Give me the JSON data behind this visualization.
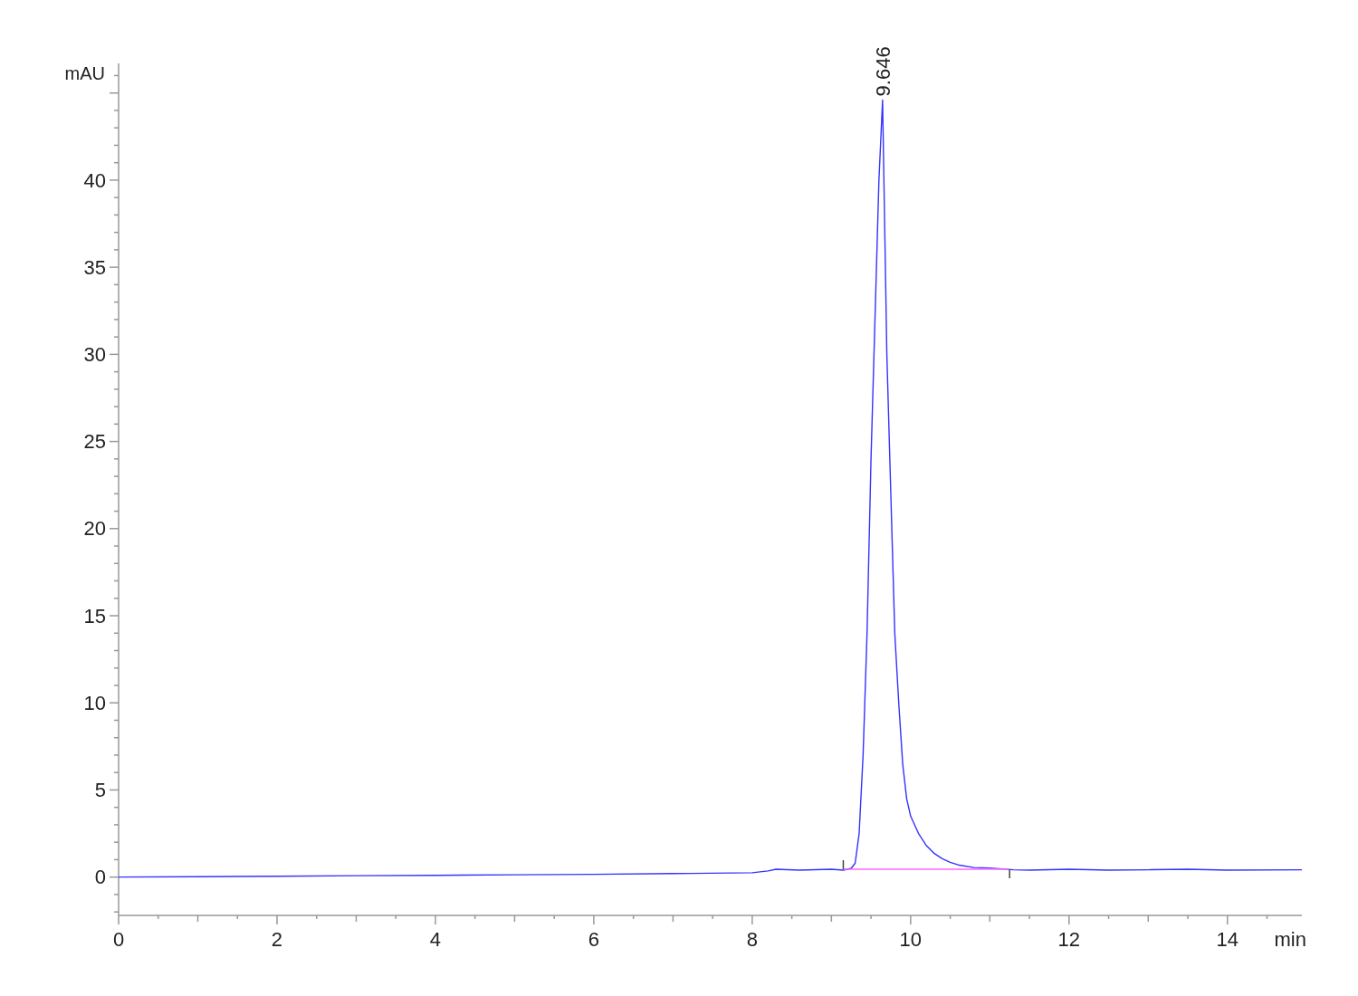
{
  "chart_data": {
    "type": "line",
    "xlabel": "min",
    "ylabel": "mAU",
    "xlim": [
      0,
      14.94
    ],
    "ylim": [
      -2.2,
      46.7
    ],
    "xticks": [
      0,
      {
        "value": 0.5,
        "label": null
      },
      {
        "value": 1,
        "label": null
      },
      {
        "value": 1.5,
        "label": null
      },
      2,
      {
        "value": 2.5,
        "label": null
      },
      {
        "value": 3,
        "label": null
      },
      {
        "value": 3.5,
        "label": null
      },
      4,
      {
        "value": 4.5,
        "label": null
      },
      {
        "value": 5,
        "label": null
      },
      {
        "value": 5.5,
        "label": null
      },
      6,
      {
        "value": 6.5,
        "label": null
      },
      {
        "value": 7,
        "label": null
      },
      {
        "value": 7.5,
        "label": null
      },
      8,
      {
        "value": 8.5,
        "label": null
      },
      {
        "value": 9,
        "label": null
      },
      {
        "value": 9.5,
        "label": null
      },
      10,
      {
        "value": 10.5,
        "label": null
      },
      {
        "value": 11,
        "label": null
      },
      {
        "value": 11.5,
        "label": null
      },
      12,
      {
        "value": 12.5,
        "label": null
      },
      {
        "value": 13,
        "label": null
      },
      {
        "value": 13.5,
        "label": null
      },
      14,
      {
        "value": 14.5,
        "label": null
      }
    ],
    "yticks": [
      {
        "value": -2,
        "label": null
      },
      {
        "value": -1,
        "label": null
      },
      0,
      {
        "value": 1,
        "label": null
      },
      {
        "value": 2,
        "label": null
      },
      {
        "value": 3,
        "label": null
      },
      {
        "value": 4,
        "label": null
      },
      5,
      {
        "value": 6,
        "label": null
      },
      {
        "value": 7,
        "label": null
      },
      {
        "value": 8,
        "label": null
      },
      {
        "value": 9,
        "label": null
      },
      10,
      {
        "value": 11,
        "label": null
      },
      {
        "value": 12,
        "label": null
      },
      {
        "value": 13,
        "label": null
      },
      {
        "value": 14,
        "label": null
      },
      15,
      {
        "value": 16,
        "label": null
      },
      {
        "value": 17,
        "label": null
      },
      {
        "value": 18,
        "label": null
      },
      {
        "value": 19,
        "label": null
      },
      20,
      {
        "value": 21,
        "label": null
      },
      {
        "value": 22,
        "label": null
      },
      {
        "value": 23,
        "label": null
      },
      {
        "value": 24,
        "label": null
      },
      25,
      {
        "value": 26,
        "label": null
      },
      {
        "value": 27,
        "label": null
      },
      {
        "value": 28,
        "label": null
      },
      {
        "value": 29,
        "label": null
      },
      30,
      {
        "value": 31,
        "label": null
      },
      {
        "value": 32,
        "label": null
      },
      {
        "value": 33,
        "label": null
      },
      {
        "value": 34,
        "label": null
      },
      35,
      {
        "value": 36,
        "label": null
      },
      {
        "value": 37,
        "label": null
      },
      {
        "value": 38,
        "label": null
      },
      {
        "value": 39,
        "label": null
      },
      40,
      {
        "value": 41,
        "label": null
      },
      {
        "value": 42,
        "label": null
      },
      {
        "value": 43,
        "label": null
      },
      {
        "value": 44,
        "label": null
      },
      {
        "value": 45,
        "label": null
      },
      {
        "value": 46,
        "label": null
      }
    ],
    "grid": false,
    "marker": "none",
    "line_style": "solid",
    "annotations": [
      {
        "text": "9.646",
        "x": 9.646,
        "y": 44.6
      }
    ],
    "series": [
      {
        "color": "#3333ff",
        "x": [
          0,
          1,
          2,
          3,
          4,
          5,
          6,
          7,
          8,
          8.2,
          8.3,
          8.6,
          9,
          9.15,
          9.25,
          9.3,
          9.35,
          9.4,
          9.45,
          9.5,
          9.55,
          9.6,
          9.646,
          9.7,
          9.75,
          9.8,
          9.85,
          9.9,
          9.95,
          10,
          10.1,
          10.2,
          10.3,
          10.4,
          10.5,
          10.6,
          10.8,
          11,
          11.3,
          11.5,
          12,
          12.5,
          13,
          13.5,
          14,
          14.94
        ],
        "values": [
          0,
          0.02,
          0.05,
          0.08,
          0.1,
          0.13,
          0.16,
          0.2,
          0.25,
          0.35,
          0.45,
          0.4,
          0.45,
          0.4,
          0.5,
          0.8,
          2.5,
          7,
          14,
          24,
          32,
          40,
          44.6,
          30,
          22,
          14,
          10,
          6.5,
          4.5,
          3.5,
          2.5,
          1.8,
          1.35,
          1.05,
          0.85,
          0.7,
          0.55,
          0.52,
          0.42,
          0.4,
          0.45,
          0.4,
          0.42,
          0.45,
          0.4,
          0.42
        ]
      },
      {
        "color": "#ff66ff",
        "x": [
          9.15,
          11.25
        ],
        "values": [
          0.45,
          0.45
        ]
      }
    ]
  }
}
